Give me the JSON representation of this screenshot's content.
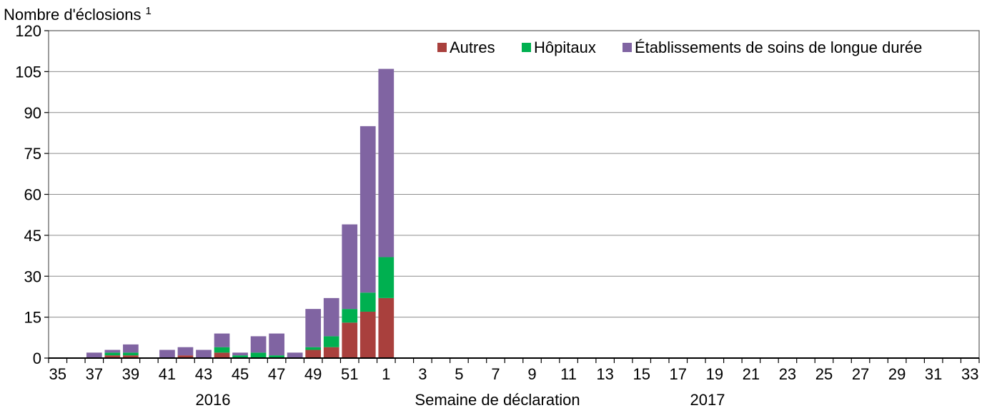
{
  "chart_data": {
    "type": "bar",
    "stacked": true,
    "title": "",
    "ylabel": "Nombre d'éclosions",
    "ylabel_superscript": "1",
    "xlabel": "Semaine de déclaration",
    "year_labels": [
      "2016",
      "2017"
    ],
    "ylim": [
      0,
      120
    ],
    "yticks": [
      0,
      15,
      30,
      45,
      60,
      75,
      90,
      105,
      120
    ],
    "grid": "horizontal",
    "legend_position": "top-right",
    "weeks": [
      35,
      36,
      37,
      38,
      39,
      40,
      41,
      42,
      43,
      44,
      45,
      46,
      47,
      48,
      49,
      50,
      51,
      52,
      1,
      2,
      3,
      4,
      5,
      6,
      7,
      8,
      9,
      10,
      11,
      12,
      13,
      14,
      15,
      16,
      17,
      18,
      19,
      20,
      21,
      22,
      23,
      24,
      25,
      26,
      27,
      28,
      29,
      30,
      31,
      32,
      33
    ],
    "series": [
      {
        "name": "Autres",
        "color": "#a9403d",
        "values": [
          0,
          0,
          0,
          1,
          1,
          0,
          0,
          1,
          0,
          2,
          0,
          0,
          0,
          0,
          3,
          4,
          13,
          17,
          22,
          0,
          0,
          0,
          0,
          0,
          0,
          0,
          0,
          0,
          0,
          0,
          0,
          0,
          0,
          0,
          0,
          0,
          0,
          0,
          0,
          0,
          0,
          0,
          0,
          0,
          0,
          0,
          0,
          0,
          0,
          0,
          0
        ]
      },
      {
        "name": "Hôpitaux",
        "color": "#00b050",
        "values": [
          0,
          0,
          0,
          1,
          1,
          0,
          0,
          0,
          0,
          2,
          1,
          2,
          1,
          0,
          1,
          4,
          5,
          7,
          15,
          0,
          0,
          0,
          0,
          0,
          0,
          0,
          0,
          0,
          0,
          0,
          0,
          0,
          0,
          0,
          0,
          0,
          0,
          0,
          0,
          0,
          0,
          0,
          0,
          0,
          0,
          0,
          0,
          0,
          0,
          0,
          0
        ]
      },
      {
        "name": "Établissements de soins de longue durée",
        "color": "#8064a2",
        "values": [
          0,
          0,
          2,
          1,
          3,
          0,
          3,
          3,
          3,
          5,
          1,
          6,
          8,
          2,
          14,
          14,
          31,
          61,
          69,
          0,
          0,
          0,
          0,
          0,
          0,
          0,
          0,
          0,
          0,
          0,
          0,
          0,
          0,
          0,
          0,
          0,
          0,
          0,
          0,
          0,
          0,
          0,
          0,
          0,
          0,
          0,
          0,
          0,
          0,
          0,
          0
        ]
      }
    ]
  }
}
